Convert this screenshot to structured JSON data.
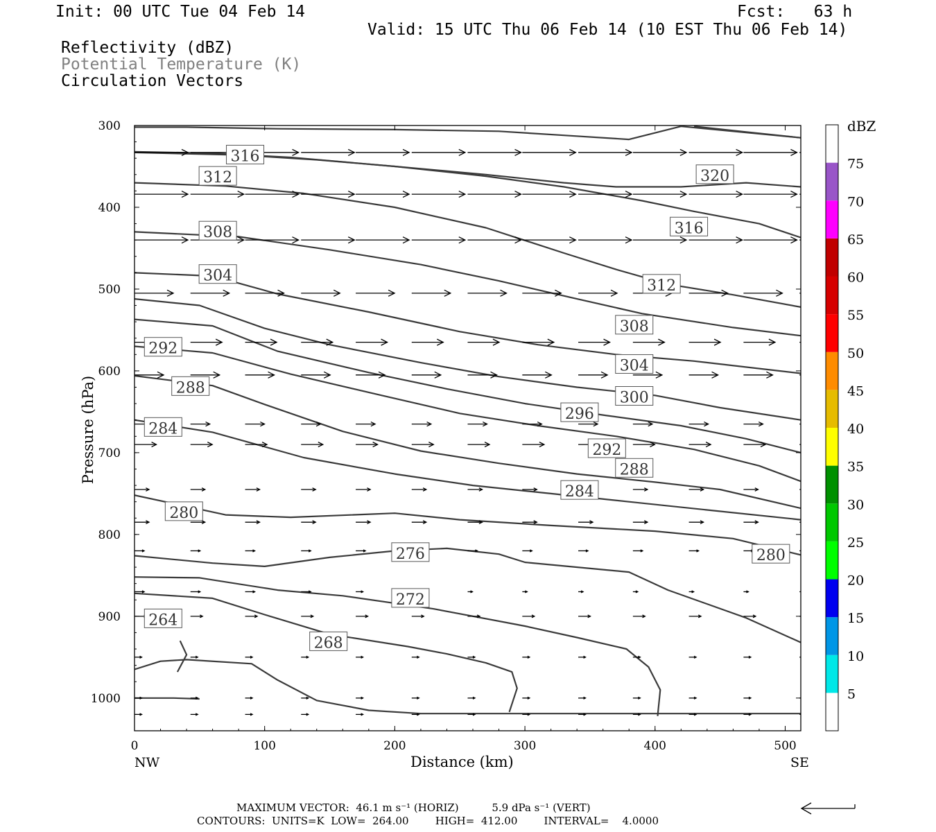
{
  "header": {
    "init": "Init: 00 UTC Tue 04 Feb 14",
    "fcst": "Fcst:   63 h",
    "valid": "Valid: 15 UTC Thu 06 Feb 14 (10 EST Thu 06 Feb 14)",
    "field1": "Reflectivity (dBZ)",
    "field2": "Potential Temperature (K)",
    "field3": "Circulation Vectors"
  },
  "footer": {
    "line1": "MAXIMUM VECTOR:  46.1 m s⁻¹ (HORIZ)          5.9 dPa s⁻¹ (VERT)",
    "line2": "CONTOURS:  UNITS=K  LOW=  264.00        HIGH=  412.00        INTERVAL=    4.0000"
  },
  "colorbar": {
    "title": "dBZ",
    "labels": [
      "5",
      "10",
      "15",
      "20",
      "25",
      "30",
      "35",
      "40",
      "45",
      "50",
      "55",
      "60",
      "65",
      "70",
      "75"
    ],
    "colors": [
      "#ffffff",
      "#00e8e8",
      "#0096e6",
      "#0000f0",
      "#00ff00",
      "#00c800",
      "#009000",
      "#ffff00",
      "#e6bc00",
      "#ff8c00",
      "#ff0000",
      "#d60000",
      "#c00000",
      "#ff00ff",
      "#9955c8",
      "#ffffff"
    ]
  },
  "chart_data": {
    "type": "contour",
    "xlabel": "Distance (km)",
    "ylabel": "Pressure (hPa)",
    "xlim": [
      0,
      512
    ],
    "ylim": [
      300,
      1040
    ],
    "y_log_scale": false,
    "x_ticks": [
      0,
      100,
      200,
      300,
      400,
      500
    ],
    "y_ticks": [
      300,
      400,
      500,
      600,
      700,
      800,
      900,
      1000
    ],
    "x_end_labels": {
      "left": "NW",
      "right": "SE"
    },
    "contours": [
      {
        "level": "",
        "points": [
          [
            0,
            302
          ],
          [
            40,
            302
          ],
          [
            110,
            304
          ],
          [
            200,
            305
          ],
          [
            280,
            307
          ],
          [
            330,
            312
          ],
          [
            380,
            317
          ],
          [
            420,
            301
          ],
          [
            512,
            315
          ]
        ]
      },
      {
        "level": "320",
        "points": [
          [
            430,
            301
          ],
          [
            470,
            308
          ],
          [
            512,
            315
          ]
        ]
      },
      {
        "level": "316",
        "points": [
          [
            0,
            332
          ],
          [
            60,
            334
          ],
          [
            120,
            339
          ],
          [
            200,
            350
          ],
          [
            270,
            362
          ],
          [
            330,
            375
          ],
          [
            390,
            392
          ],
          [
            430,
            405
          ],
          [
            480,
            420
          ],
          [
            512,
            437
          ]
        ]
      },
      {
        "level": "",
        "points": [
          [
            0,
            333
          ],
          [
            80,
            336
          ],
          [
            140,
            342
          ],
          [
            200,
            350
          ],
          [
            270,
            360
          ],
          [
            330,
            370
          ],
          [
            370,
            375
          ],
          [
            420,
            375
          ],
          [
            470,
            370
          ],
          [
            512,
            375
          ]
        ]
      },
      {
        "level": "312",
        "points": [
          [
            0,
            370
          ],
          [
            70,
            374
          ],
          [
            130,
            383
          ],
          [
            200,
            400
          ],
          [
            270,
            425
          ],
          [
            330,
            456
          ],
          [
            370,
            476
          ],
          [
            410,
            494
          ],
          [
            460,
            507
          ],
          [
            512,
            522
          ]
        ]
      },
      {
        "level": "308",
        "points": [
          [
            0,
            430
          ],
          [
            80,
            436
          ],
          [
            150,
            452
          ],
          [
            220,
            470
          ],
          [
            280,
            490
          ],
          [
            340,
            512
          ],
          [
            390,
            530
          ],
          [
            460,
            547
          ],
          [
            512,
            557
          ]
        ]
      },
      {
        "level": "304",
        "points": [
          [
            0,
            480
          ],
          [
            60,
            484
          ],
          [
            110,
            506
          ],
          [
            180,
            528
          ],
          [
            250,
            552
          ],
          [
            310,
            568
          ],
          [
            370,
            580
          ],
          [
            430,
            588
          ],
          [
            512,
            603
          ]
        ]
      },
      {
        "level": "",
        "points": [
          [
            0,
            512
          ],
          [
            50,
            520
          ],
          [
            100,
            548
          ],
          [
            150,
            568
          ],
          [
            220,
            590
          ],
          [
            280,
            607
          ],
          [
            340,
            620
          ],
          [
            400,
            630
          ],
          [
            450,
            645
          ],
          [
            512,
            660
          ]
        ]
      },
      {
        "level": "300",
        "points": [
          [
            0,
            537
          ],
          [
            60,
            545
          ],
          [
            110,
            576
          ],
          [
            180,
            602
          ],
          [
            240,
            622
          ],
          [
            300,
            640
          ],
          [
            360,
            654
          ],
          [
            420,
            667
          ],
          [
            470,
            683
          ],
          [
            512,
            700
          ]
        ]
      },
      {
        "level": "296",
        "points": [
          [
            0,
            570
          ],
          [
            60,
            578
          ],
          [
            120,
            604
          ],
          [
            190,
            630
          ],
          [
            250,
            652
          ],
          [
            310,
            667
          ],
          [
            370,
            680
          ],
          [
            430,
            696
          ],
          [
            480,
            716
          ],
          [
            512,
            735
          ]
        ]
      },
      {
        "level": "292",
        "points": [
          [
            0,
            606
          ],
          [
            60,
            618
          ],
          [
            100,
            641
          ],
          [
            160,
            674
          ],
          [
            220,
            698
          ],
          [
            280,
            713
          ],
          [
            340,
            726
          ],
          [
            400,
            736
          ],
          [
            450,
            745
          ],
          [
            512,
            768
          ]
        ]
      },
      {
        "level": "288",
        "points": [
          [
            0,
            660
          ],
          [
            60,
            675
          ],
          [
            130,
            706
          ],
          [
            200,
            726
          ],
          [
            260,
            740
          ],
          [
            320,
            750
          ],
          [
            380,
            760
          ],
          [
            440,
            770
          ],
          [
            512,
            782
          ]
        ]
      },
      {
        "level": "284",
        "points": [
          [
            0,
            752
          ],
          [
            70,
            776
          ],
          [
            120,
            779
          ],
          [
            200,
            774
          ],
          [
            250,
            782
          ],
          [
            320,
            789
          ],
          [
            400,
            796
          ],
          [
            460,
            805
          ],
          [
            512,
            825
          ]
        ]
      },
      {
        "level": "280",
        "points": [
          [
            0,
            826
          ],
          [
            60,
            835
          ],
          [
            100,
            839
          ],
          [
            150,
            828
          ],
          [
            200,
            820
          ],
          [
            240,
            817
          ],
          [
            280,
            824
          ],
          [
            300,
            834
          ],
          [
            380,
            846
          ],
          [
            410,
            868
          ],
          [
            470,
            902
          ],
          [
            512,
            932
          ]
        ]
      },
      {
        "level": "276",
        "points": [
          [
            0,
            852
          ],
          [
            50,
            853
          ],
          [
            110,
            868
          ],
          [
            160,
            875
          ],
          [
            230,
            891
          ],
          [
            260,
            900
          ],
          [
            300,
            912
          ],
          [
            340,
            926
          ],
          [
            378,
            940
          ],
          [
            395,
            962
          ],
          [
            404,
            990
          ],
          [
            402,
            1022
          ]
        ]
      },
      {
        "level": "272",
        "points": [
          [
            0,
            872
          ],
          [
            60,
            878
          ],
          [
            100,
            898
          ],
          [
            150,
            922
          ],
          [
            210,
            937
          ],
          [
            240,
            946
          ],
          [
            270,
            957
          ],
          [
            290,
            968
          ],
          [
            294,
            988
          ],
          [
            288,
            1017
          ]
        ]
      },
      {
        "level": "268",
        "points": [
          [
            0,
            965
          ],
          [
            20,
            955
          ],
          [
            40,
            953
          ],
          [
            90,
            958
          ],
          [
            110,
            978
          ],
          [
            140,
            1003
          ],
          [
            180,
            1015
          ],
          [
            220,
            1019
          ],
          [
            250,
            1019
          ],
          [
            512,
            1019
          ]
        ]
      },
      {
        "level": "264",
        "points": [
          [
            35,
            930
          ],
          [
            40,
            947
          ],
          [
            33,
            968
          ]
        ]
      },
      {
        "level": "",
        "points": [
          [
            0,
            1000
          ],
          [
            30,
            1000
          ],
          [
            50,
            1001
          ]
        ]
      }
    ],
    "contour_labels": [
      {
        "text": "316",
        "x": 85,
        "y": 336
      },
      {
        "text": "312",
        "x": 64,
        "y": 362
      },
      {
        "text": "308",
        "x": 64,
        "y": 429
      },
      {
        "text": "304",
        "x": 64,
        "y": 482
      },
      {
        "text": "292",
        "x": 22,
        "y": 571
      },
      {
        "text": "288",
        "x": 43,
        "y": 619
      },
      {
        "text": "284",
        "x": 22,
        "y": 669
      },
      {
        "text": "280",
        "x": 38,
        "y": 772
      },
      {
        "text": "264",
        "x": 22,
        "y": 903
      },
      {
        "text": "268",
        "x": 149,
        "y": 931
      },
      {
        "text": "272",
        "x": 212,
        "y": 878
      },
      {
        "text": "276",
        "x": 212,
        "y": 822
      },
      {
        "text": "284",
        "x": 342,
        "y": 746
      },
      {
        "text": "288",
        "x": 384,
        "y": 719
      },
      {
        "text": "292",
        "x": 363,
        "y": 695
      },
      {
        "text": "296",
        "x": 342,
        "y": 651
      },
      {
        "text": "300",
        "x": 384,
        "y": 631
      },
      {
        "text": "304",
        "x": 384,
        "y": 592
      },
      {
        "text": "308",
        "x": 384,
        "y": 544
      },
      {
        "text": "312",
        "x": 405,
        "y": 494
      },
      {
        "text": "316",
        "x": 426,
        "y": 424
      },
      {
        "text": "320",
        "x": 446,
        "y": 360
      },
      {
        "text": "280",
        "x": 489,
        "y": 824
      }
    ],
    "vectors": {
      "x": [
        0,
        43,
        85,
        128,
        170,
        213,
        256,
        298,
        341,
        383,
        426,
        468,
        511
      ],
      "rows": [
        {
          "p": 333,
          "u": [
            22,
            22,
            22,
            22,
            22,
            22,
            22,
            22,
            22,
            22,
            22,
            22,
            22
          ]
        },
        {
          "p": 384,
          "u": [
            22,
            22,
            22,
            22,
            22,
            22,
            22,
            22,
            22,
            22,
            22,
            22,
            22
          ]
        },
        {
          "p": 440,
          "u": [
            22,
            22,
            22,
            22,
            22,
            22,
            22,
            22,
            22,
            22,
            22,
            22,
            22
          ]
        },
        {
          "p": 505,
          "u": [
            16,
            16,
            16,
            16,
            16,
            16,
            16,
            16,
            16,
            16,
            16,
            16,
            16
          ]
        },
        {
          "p": 565,
          "u": [
            13,
            13,
            13,
            13,
            13,
            13,
            13,
            13,
            13,
            13,
            13,
            13,
            13
          ]
        },
        {
          "p": 605,
          "u": [
            12,
            12,
            12,
            12,
            12,
            12,
            12,
            12,
            12,
            12,
            12,
            12,
            12
          ]
        },
        {
          "p": 665,
          "u": [
            8,
            8,
            8,
            8,
            8,
            8,
            8,
            8,
            8,
            8,
            8,
            8,
            8
          ]
        },
        {
          "p": 690,
          "u": [
            9,
            9,
            9,
            9,
            9,
            9,
            9,
            9,
            9,
            9,
            9,
            9,
            9
          ]
        },
        {
          "p": 745,
          "u": [
            6,
            6,
            6,
            6,
            6,
            6,
            6,
            6,
            6,
            6,
            6,
            6,
            6
          ]
        },
        {
          "p": 785,
          "u": [
            6,
            6,
            6,
            6,
            6,
            6,
            6,
            6,
            6,
            6,
            6,
            6,
            6
          ]
        },
        {
          "p": 820,
          "u": [
            4,
            4,
            4,
            4,
            4,
            4,
            4,
            4,
            4,
            4,
            4,
            4,
            4
          ]
        },
        {
          "p": 870,
          "u": [
            4,
            4,
            4,
            4,
            3,
            2,
            2,
            2,
            2,
            2,
            2,
            2,
            2
          ]
        },
        {
          "p": 900,
          "u": [
            5,
            5,
            5,
            5,
            5,
            5,
            5,
            5,
            5,
            5,
            5,
            5,
            5
          ]
        },
        {
          "p": 950,
          "u": [
            3,
            3,
            3,
            3,
            3,
            3,
            3,
            3,
            3,
            3,
            3,
            3,
            3
          ]
        },
        {
          "p": 1000,
          "u": [
            3,
            3,
            3,
            3,
            3,
            3,
            3,
            3,
            3,
            3,
            3,
            3,
            3
          ]
        },
        {
          "p": 1020,
          "u": [
            3,
            3,
            3,
            3,
            3,
            3,
            3,
            3,
            3,
            3,
            3,
            3,
            3
          ]
        }
      ]
    },
    "max_vector": {
      "horiz": "46.1 m s-1",
      "vert": "5.9 dPa s-1"
    },
    "contour_levels": {
      "low": 264.0,
      "high": 412.0,
      "interval": 4.0,
      "units": "K"
    }
  }
}
